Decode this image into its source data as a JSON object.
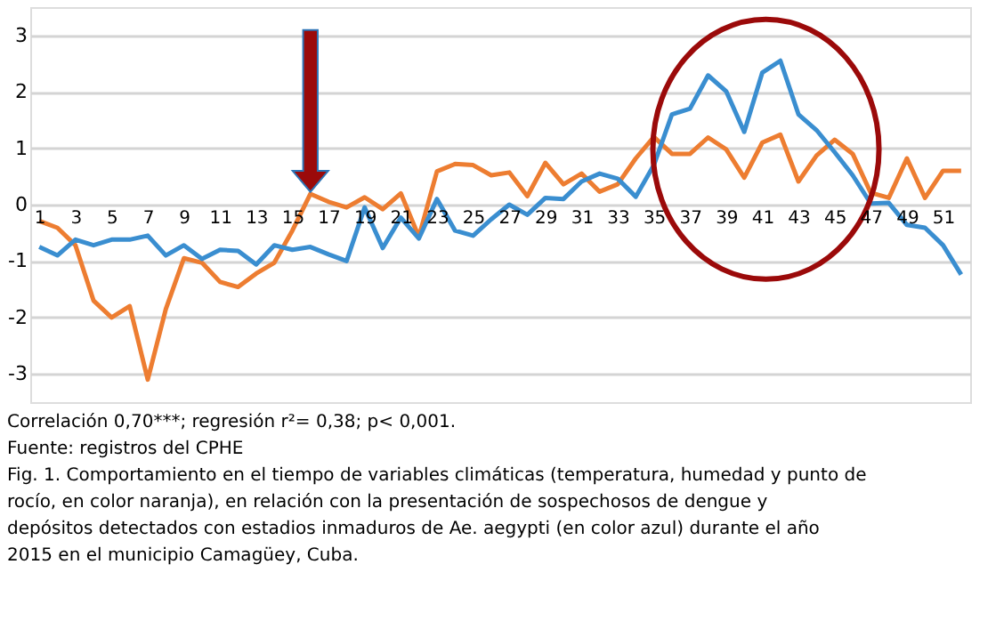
{
  "chart_data": {
    "type": "line",
    "x": [
      1,
      2,
      3,
      4,
      5,
      6,
      7,
      8,
      9,
      10,
      11,
      12,
      13,
      14,
      15,
      16,
      17,
      18,
      19,
      20,
      21,
      22,
      23,
      24,
      25,
      26,
      27,
      28,
      29,
      30,
      31,
      32,
      33,
      34,
      35,
      36,
      37,
      38,
      39,
      40,
      41,
      42,
      43,
      44,
      45,
      46,
      47,
      48,
      49,
      50,
      51,
      52
    ],
    "xlim": [
      0.5,
      52.5
    ],
    "xticks": [
      1,
      3,
      5,
      7,
      9,
      11,
      13,
      15,
      17,
      19,
      21,
      23,
      25,
      27,
      29,
      31,
      33,
      35,
      37,
      39,
      41,
      43,
      45,
      47,
      49,
      51
    ],
    "ylim": [
      -3.5,
      3.5
    ],
    "yticks": [
      -3,
      -2,
      -1,
      0,
      1,
      2,
      3
    ],
    "grid": "y",
    "series": [
      {
        "color": "#ed7d31",
        "values": [
          -0.29,
          -0.41,
          -0.72,
          -1.7,
          -2.0,
          -1.8,
          -3.1,
          -1.85,
          -0.95,
          -1.03,
          -1.37,
          -1.46,
          -1.22,
          -1.03,
          -0.46,
          0.19,
          0.05,
          -0.05,
          0.13,
          -0.08,
          0.2,
          -0.57,
          0.59,
          0.72,
          0.7,
          0.52,
          0.57,
          0.15,
          0.74,
          0.36,
          0.55,
          0.23,
          0.36,
          0.82,
          1.2,
          0.9,
          0.9,
          1.19,
          0.98,
          0.48,
          1.1,
          1.24,
          0.41,
          0.87,
          1.15,
          0.9,
          0.21,
          0.12,
          0.82,
          0.12,
          0.6,
          0.6
        ]
      },
      {
        "color": "#3a8ed0",
        "values": [
          -0.75,
          -0.9,
          -0.62,
          -0.72,
          -0.62,
          -0.62,
          -0.55,
          -0.9,
          -0.72,
          -0.96,
          -0.8,
          -0.82,
          -1.06,
          -0.72,
          -0.8,
          -0.75,
          -0.88,
          -1.0,
          -0.05,
          -0.77,
          -0.23,
          -0.6,
          0.1,
          -0.46,
          -0.55,
          -0.26,
          0.0,
          -0.18,
          0.12,
          0.1,
          0.41,
          0.55,
          0.46,
          0.14,
          0.7,
          1.6,
          1.7,
          2.29,
          2.01,
          1.29,
          2.34,
          2.55,
          1.6,
          1.32,
          0.93,
          0.52,
          0.02,
          0.03,
          -0.36,
          -0.41,
          -0.72,
          -1.24
        ]
      }
    ],
    "annotations": [
      "Correlación 0,70***; regresión r²= 0,38; p< 0,001.",
      "Fuente: registros del CPHE",
      "Fig. 1. Comportamiento en el tiempo de variables climáticas (temperatura, humedad y punto de rocío, en color naranja), en relación con la presentación de sospechosos de dengue y depósitos detectados con estadios inmaduros de Ae. aegypti (en color azul) durante el año 2015 en el municipio Camagüey, Cuba."
    ]
  }
}
